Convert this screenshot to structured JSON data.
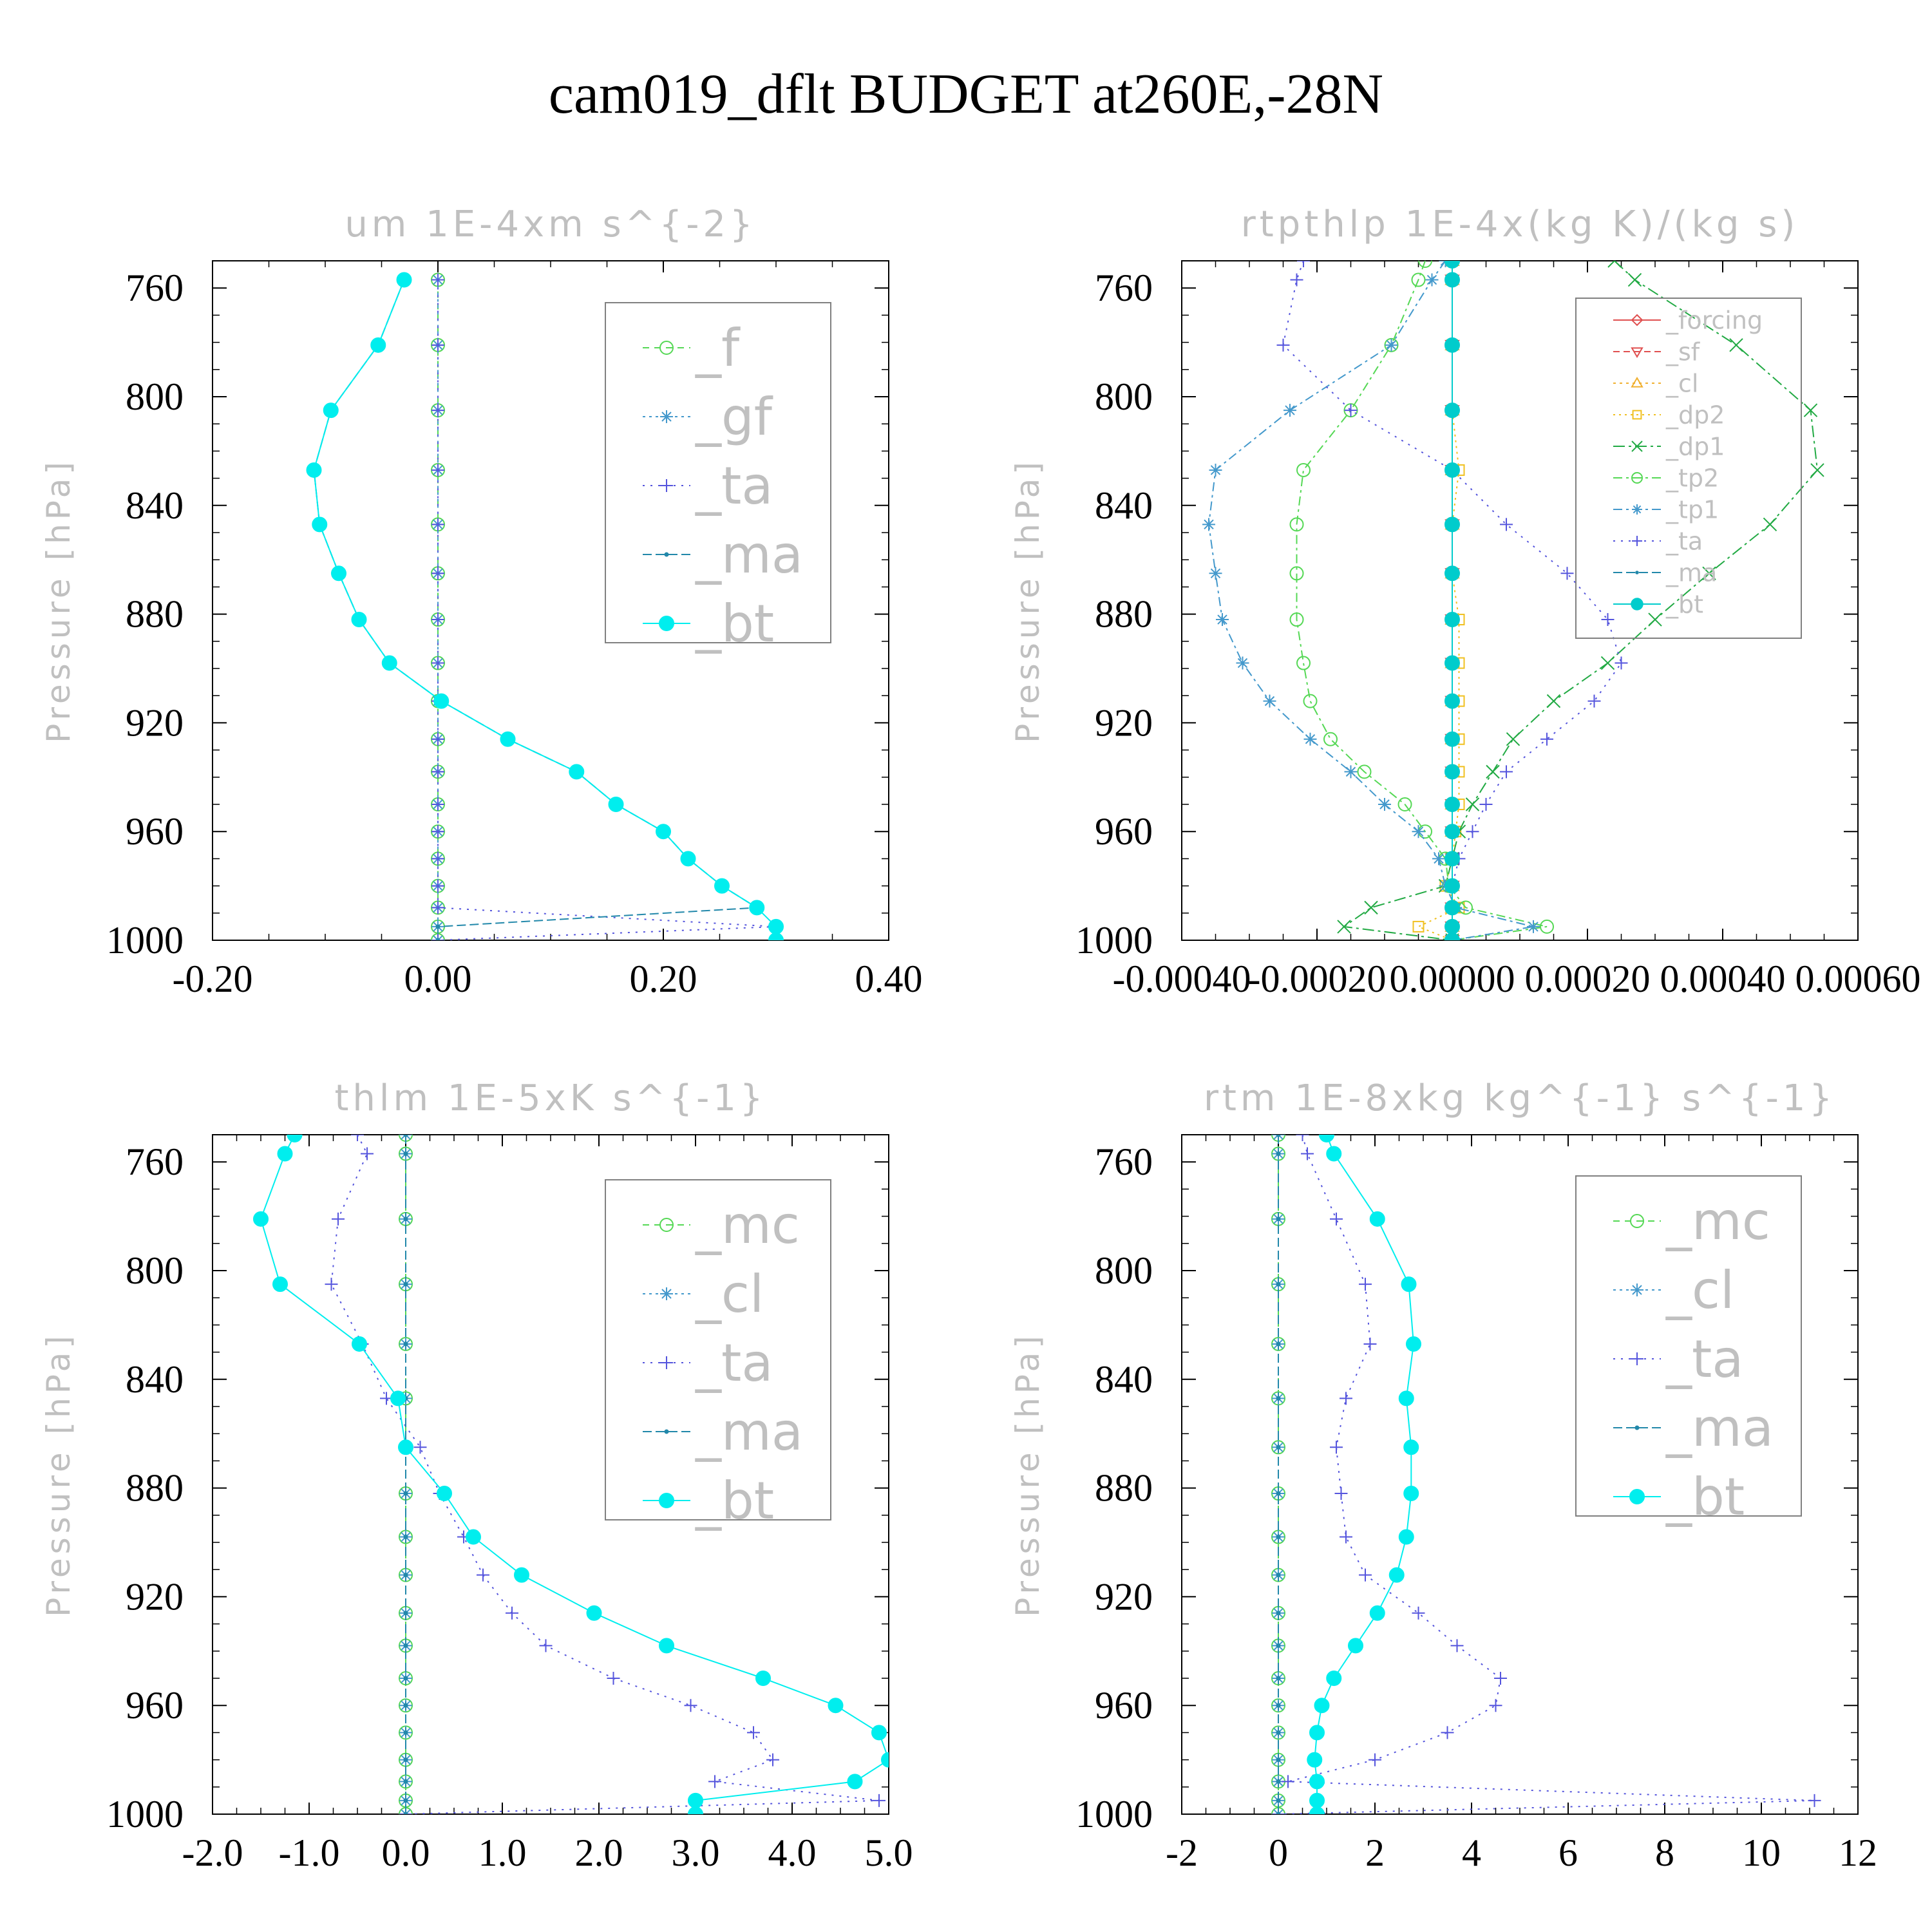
{
  "title": "cam019_dflt  BUDGET at260E,-28N",
  "ylabel": "Pressure [hPa]",
  "chart_data": [
    {
      "type": "line",
      "title": "um  1E-4xm s^{-2}",
      "ylabel": "Pressure [hPa]",
      "xlim": [
        -0.2,
        0.4
      ],
      "ylim": [
        1000,
        750
      ],
      "xticks": [
        "-0.20",
        "0.00",
        "0.20",
        "0.40"
      ],
      "yticks": [
        "760",
        "800",
        "840",
        "880",
        "920",
        "960",
        "1000"
      ],
      "legend_position": "top-right",
      "legend_font": 80,
      "pressure": [
        757,
        781,
        805,
        827,
        847,
        865,
        882,
        898,
        912,
        926,
        938,
        950,
        960,
        970,
        980,
        988,
        995,
        1000
      ],
      "series": [
        {
          "name": "_f",
          "color": "#55d855",
          "marker": "circle-open",
          "dash": "10,8",
          "values": [
            0,
            0,
            0,
            0,
            0,
            0,
            0,
            0,
            0,
            0,
            0,
            0,
            0,
            0,
            0,
            0,
            0,
            0
          ]
        },
        {
          "name": "_gf",
          "color": "#4499cc",
          "marker": "asterisk",
          "dash": "4,6",
          "values": [
            0,
            0,
            0,
            0,
            0,
            0,
            0,
            0,
            0,
            0,
            0,
            0,
            0,
            0,
            0,
            0,
            0,
            0
          ]
        },
        {
          "name": "_ta",
          "color": "#5555dd",
          "marker": "plus",
          "dash": "3,9",
          "values": [
            0,
            0,
            0,
            0,
            0,
            0,
            0,
            0,
            0,
            0,
            0,
            0,
            0,
            0,
            0,
            0,
            0.3,
            0
          ]
        },
        {
          "name": "_ma",
          "color": "#2288aa",
          "marker": "dot",
          "dash": "14,6",
          "values": [
            -0.03,
            -0.053,
            -0.095,
            -0.11,
            -0.105,
            -0.088,
            -0.07,
            -0.043,
            0.003,
            0.062,
            0.123,
            0.158,
            0.2,
            0.222,
            0.252,
            0.283,
            0,
            0
          ]
        },
        {
          "name": "_bt",
          "color": "#00eeee",
          "marker": "circle-filled",
          "dash": "",
          "values": [
            -0.03,
            -0.053,
            -0.095,
            -0.11,
            -0.105,
            -0.088,
            -0.07,
            -0.043,
            0.003,
            0.062,
            0.123,
            0.158,
            0.2,
            0.222,
            0.252,
            0.283,
            0.3,
            0.3
          ]
        }
      ]
    },
    {
      "type": "line",
      "title": "rtpthlp  1E-4x(kg K)/(kg s)",
      "ylabel": "Pressure [hPa]",
      "xlim": [
        -0.0004,
        0.0006
      ],
      "ylim": [
        1000,
        750
      ],
      "xticks": [
        "-0.00040",
        "-0.00020",
        "0.00000",
        "0.00020",
        "0.00040",
        "0.00060"
      ],
      "yticks": [
        "760",
        "800",
        "840",
        "880",
        "920",
        "960",
        "1000"
      ],
      "legend_position": "top-right",
      "legend_font": 38,
      "pressure": [
        750,
        757,
        781,
        805,
        827,
        847,
        865,
        882,
        898,
        912,
        926,
        938,
        950,
        960,
        970,
        980,
        988,
        995,
        1000
      ],
      "series": [
        {
          "name": "_forcing",
          "color": "#e05050",
          "marker": "diamond",
          "dash": "",
          "values": [
            0,
            0,
            0,
            0,
            0,
            0,
            0,
            0,
            0,
            0,
            0,
            0,
            0,
            0,
            0,
            0,
            0,
            0,
            0
          ]
        },
        {
          "name": "_sf",
          "color": "#e05050",
          "marker": "triangle-down",
          "dash": "10,6",
          "values": [
            0,
            0,
            0,
            0,
            0,
            0,
            0,
            0,
            0,
            0,
            0,
            0,
            0,
            0,
            0,
            0,
            0,
            0,
            0
          ]
        },
        {
          "name": "_cl",
          "color": "#f0b030",
          "marker": "triangle-up",
          "dash": "4,6",
          "values": [
            0,
            0,
            0,
            0,
            0,
            0,
            0,
            0,
            0,
            0,
            0,
            0,
            0,
            0,
            0,
            0,
            0,
            0,
            0
          ]
        },
        {
          "name": "_dp2",
          "color": "#f0c020",
          "marker": "square-open",
          "dash": "3,6",
          "values": [
            0,
            0,
            0,
            0,
            1e-05,
            0,
            0,
            1e-05,
            1e-05,
            1e-05,
            1e-05,
            1e-05,
            1e-05,
            5e-06,
            0,
            -1e-05,
            1e-05,
            -5e-05,
            0
          ]
        },
        {
          "name": "_dp1",
          "color": "#22aa44",
          "marker": "x",
          "dash": "18,6,4,6",
          "values": [
            0.00024,
            0.00027,
            0.00042,
            0.00053,
            0.00054,
            0.00047,
            0.00038,
            0.0003,
            0.00023,
            0.00015,
            9e-05,
            6e-05,
            3e-05,
            1e-05,
            0,
            -1e-05,
            -0.00012,
            -0.00016,
            0
          ]
        },
        {
          "name": "_tp2",
          "color": "#55d855",
          "marker": "circle-open",
          "dash": "14,6,4,6",
          "values": [
            -4e-05,
            -5e-05,
            -9e-05,
            -0.00015,
            -0.00022,
            -0.00023,
            -0.00023,
            -0.00023,
            -0.00022,
            -0.00021,
            -0.00018,
            -0.00013,
            -7e-05,
            -4e-05,
            -1e-05,
            -5e-06,
            2e-05,
            0.00014,
            0
          ]
        },
        {
          "name": "_tp1",
          "color": "#4499cc",
          "marker": "asterisk",
          "dash": "14,6,4,6",
          "values": [
            -1e-05,
            -3e-05,
            -9e-05,
            -0.00024,
            -0.00035,
            -0.00036,
            -0.00035,
            -0.00034,
            -0.00031,
            -0.00027,
            -0.00021,
            -0.00015,
            -0.0001,
            -5e-05,
            -2e-05,
            -1e-05,
            5e-06,
            0.00012,
            0
          ]
        },
        {
          "name": "_ta",
          "color": "#5555dd",
          "marker": "plus",
          "dash": "3,9",
          "values": [
            -0.00022,
            -0.00023,
            -0.00025,
            -0.00015,
            0,
            8e-05,
            0.00017,
            0.00023,
            0.00025,
            0.00021,
            0.00014,
            8e-05,
            5e-05,
            3e-05,
            1e-05,
            0,
            0,
            0,
            0
          ]
        },
        {
          "name": "_ma",
          "color": "#2288aa",
          "marker": "dot",
          "dash": "14,6",
          "values": [
            0,
            0,
            0,
            0,
            0,
            0,
            0,
            0,
            0,
            0,
            0,
            0,
            0,
            0,
            0,
            0,
            0,
            0,
            0
          ]
        },
        {
          "name": "_bt",
          "color": "#00cccc",
          "marker": "circle-filled",
          "dash": "",
          "values": [
            0,
            0,
            0,
            0,
            0,
            0,
            0,
            0,
            0,
            0,
            0,
            0,
            0,
            0,
            0,
            0,
            0,
            0,
            0
          ]
        }
      ]
    },
    {
      "type": "line",
      "title": "thlm  1E-5xK s^{-1}",
      "ylabel": "Pressure [hPa]",
      "xlim": [
        -2.0,
        5.0
      ],
      "ylim": [
        1000,
        750
      ],
      "xticks": [
        "-2.0",
        "-1.0",
        "0.0",
        "1.0",
        "2.0",
        "3.0",
        "4.0",
        "5.0"
      ],
      "yticks": [
        "760",
        "800",
        "840",
        "880",
        "920",
        "960",
        "1000"
      ],
      "legend_position": "top-right",
      "legend_font": 80,
      "pressure": [
        750,
        757,
        781,
        805,
        827,
        847,
        865,
        882,
        898,
        912,
        926,
        938,
        950,
        960,
        970,
        980,
        988,
        995,
        1000
      ],
      "series": [
        {
          "name": "_mc",
          "color": "#55d855",
          "marker": "circle-open",
          "dash": "10,8",
          "values": [
            0,
            0,
            0,
            0,
            0,
            0,
            0,
            0,
            0,
            0,
            0,
            0,
            0,
            0,
            0,
            0,
            0,
            0,
            0
          ]
        },
        {
          "name": "_cl",
          "color": "#4499cc",
          "marker": "asterisk",
          "dash": "4,6",
          "values": [
            0,
            0,
            0,
            0,
            0,
            0,
            0,
            0,
            0,
            0,
            0,
            0,
            0,
            0,
            0,
            0,
            0,
            0,
            0
          ]
        },
        {
          "name": "_ta",
          "color": "#5555dd",
          "marker": "plus",
          "dash": "3,9",
          "values": [
            -0.5,
            -0.4,
            -0.7,
            -0.77,
            -0.45,
            -0.2,
            0.15,
            0.35,
            0.6,
            0.8,
            1.1,
            1.45,
            2.15,
            2.95,
            3.6,
            3.8,
            3.2,
            4.9,
            0
          ]
        },
        {
          "name": "_ma",
          "color": "#2288aa",
          "marker": "dot",
          "dash": "14,6",
          "values": [
            0,
            0,
            0,
            0,
            0,
            0,
            0,
            0,
            0,
            0,
            0,
            0,
            0,
            0,
            0,
            0,
            0,
            0,
            0
          ]
        },
        {
          "name": "_bt",
          "color": "#00eeee",
          "marker": "circle-filled",
          "dash": "",
          "values": [
            -1.15,
            -1.25,
            -1.5,
            -1.3,
            -0.48,
            -0.08,
            0,
            0.4,
            0.7,
            1.2,
            1.95,
            2.7,
            3.7,
            4.45,
            4.9,
            5.0,
            4.65,
            3.0,
            3.0
          ]
        }
      ]
    },
    {
      "type": "line",
      "title": "rtm  1E-8xkg kg^{-1} s^{-1}",
      "ylabel": "Pressure [hPa]",
      "xlim": [
        -2,
        12
      ],
      "ylim": [
        1000,
        750
      ],
      "xticks": [
        "-2",
        "0",
        "2",
        "4",
        "6",
        "8",
        "10",
        "12"
      ],
      "yticks": [
        "760",
        "800",
        "840",
        "880",
        "920",
        "960",
        "1000"
      ],
      "legend_position": "top-right",
      "legend_font": 80,
      "pressure": [
        750,
        757,
        781,
        805,
        827,
        847,
        865,
        882,
        898,
        912,
        926,
        938,
        950,
        960,
        970,
        980,
        988,
        995,
        1000
      ],
      "series": [
        {
          "name": "_mc",
          "color": "#55d855",
          "marker": "circle-open",
          "dash": "10,8",
          "values": [
            0,
            0,
            0,
            0,
            0,
            0,
            0,
            0,
            0,
            0,
            0,
            0,
            0,
            0,
            0,
            0,
            0,
            0,
            0
          ]
        },
        {
          "name": "_cl",
          "color": "#4499cc",
          "marker": "asterisk",
          "dash": "4,6",
          "values": [
            0,
            0,
            0,
            0,
            0,
            0,
            0,
            0,
            0,
            0,
            0,
            0,
            0,
            0,
            0,
            0,
            0,
            0,
            0
          ]
        },
        {
          "name": "_ta",
          "color": "#5555dd",
          "marker": "plus",
          "dash": "3,9",
          "values": [
            0.5,
            0.6,
            1.2,
            1.8,
            1.9,
            1.4,
            1.2,
            1.3,
            1.4,
            1.8,
            2.9,
            3.7,
            4.6,
            4.5,
            3.5,
            2.0,
            0.2,
            11.1,
            0
          ]
        },
        {
          "name": "_ma",
          "color": "#2288aa",
          "marker": "dot",
          "dash": "14,6",
          "values": [
            0,
            0,
            0,
            0,
            0,
            0,
            0,
            0,
            0,
            0,
            0,
            0,
            0,
            0,
            0,
            0,
            0,
            0,
            0
          ]
        },
        {
          "name": "_bt",
          "color": "#00eeee",
          "marker": "circle-filled",
          "dash": "",
          "values": [
            1.0,
            1.15,
            2.05,
            2.7,
            2.8,
            2.65,
            2.75,
            2.75,
            2.65,
            2.45,
            2.05,
            1.6,
            1.15,
            0.9,
            0.8,
            0.75,
            0.8,
            0.8,
            0.8
          ]
        }
      ]
    }
  ]
}
